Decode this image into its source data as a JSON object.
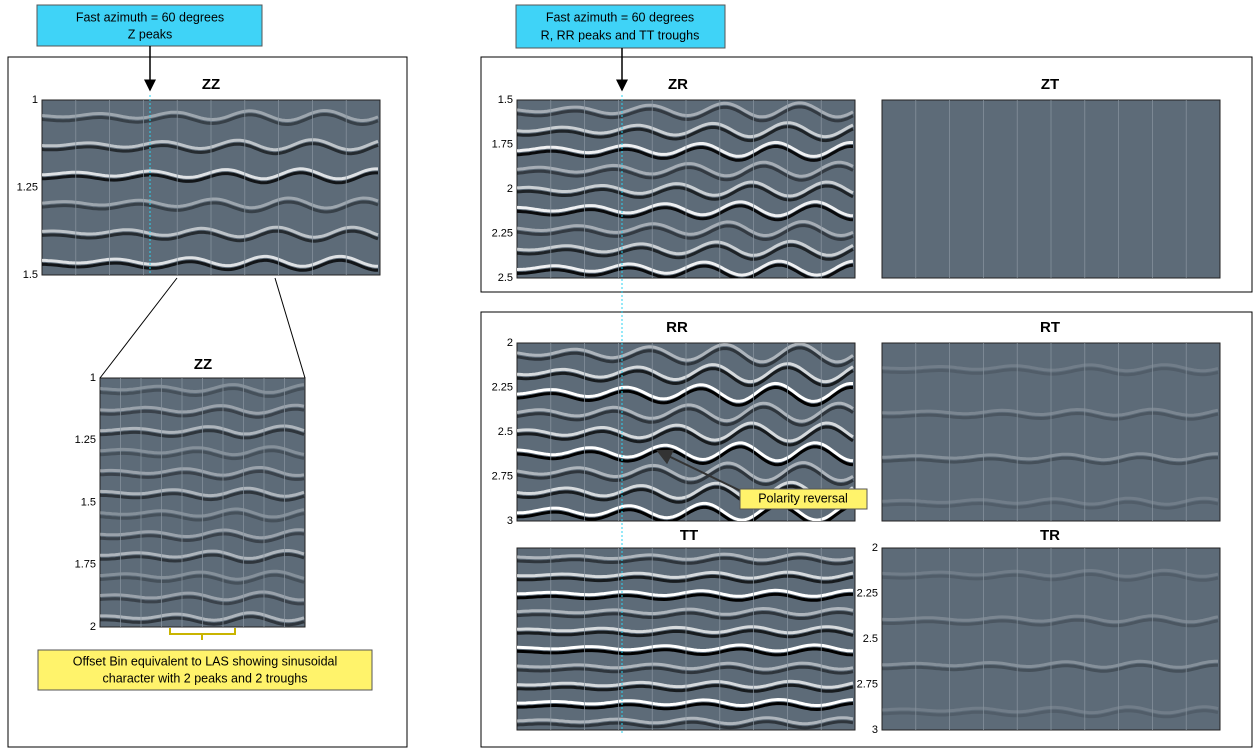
{
  "callouts": {
    "left": [
      "Fast azimuth = 60 degrees",
      "Z peaks"
    ],
    "right": [
      "Fast azimuth = 60 degrees",
      "R, RR peaks and TT troughs"
    ]
  },
  "panels": [
    {
      "title": "ZZ",
      "yticks": [
        "1",
        "1.25",
        "1.5"
      ]
    },
    {
      "title": "ZZ",
      "yticks": [
        "1",
        "1.25",
        "1.5",
        "1.75",
        "2"
      ]
    },
    {
      "title": "ZR",
      "yticks": [
        "1.5",
        "1.75",
        "2",
        "2.25",
        "2.5"
      ]
    },
    {
      "title": "ZT",
      "yticks": []
    },
    {
      "title": "RR",
      "yticks": [
        "2",
        "2.25",
        "2.5",
        "2.75",
        "3"
      ]
    },
    {
      "title": "RT",
      "yticks": []
    },
    {
      "title": "TT",
      "yticks": []
    },
    {
      "title": "TR",
      "yticks": [
        "2",
        "2.25",
        "2.5",
        "2.75",
        "3"
      ]
    }
  ],
  "annotations": {
    "polarity": "Polarity reversal",
    "offset_bin": [
      "Offset Bin equivalent to LAS showing sinusoidal",
      "character with 2 peaks and 2 troughs"
    ]
  }
}
